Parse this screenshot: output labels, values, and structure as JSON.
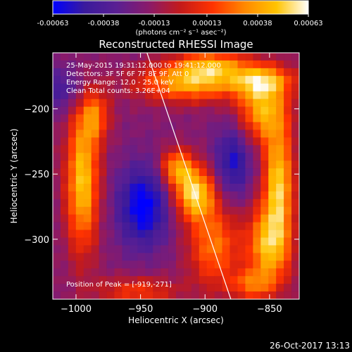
{
  "colorbar": {
    "tick_labels": [
      "-0.00063",
      "-0.00038",
      "-0.00013",
      "0.00013",
      "0.00038",
      "0.00063"
    ],
    "tick_values": [
      -0.00063,
      -0.00038,
      -0.00013,
      0.00013,
      0.00038,
      0.00063
    ],
    "range": [
      -0.00063,
      0.00063
    ],
    "unit_label": "(photons cm⁻² s⁻¹ asec⁻²)",
    "colors": [
      "#0000ff",
      "#3a1a9c",
      "#5a1f93",
      "#8a1a6a",
      "#c41a1a",
      "#ff3300",
      "#ff8800",
      "#ffc400",
      "#ffffff"
    ]
  },
  "chart_data": {
    "type": "heatmap",
    "title": "Reconstructed RHESSI Image",
    "xlabel": "Heliocentric X (arcsec)",
    "ylabel": "Heliocentric Y (arcsec)",
    "xlim": [
      -1018,
      -827
    ],
    "ylim": [
      -346,
      -157
    ],
    "xticks": [
      -1000,
      -950,
      -900,
      -850
    ],
    "xtick_labels": [
      "−1000",
      "−950",
      "−900",
      "−850"
    ],
    "yticks": [
      -200,
      -250,
      -300
    ],
    "ytick_labels": [
      "−200",
      "−250",
      "−300"
    ],
    "info_lines": [
      "25-May-2015 19:31:12.000 to 19:41:12.000",
      "Detectors: 3F 5F 6F 7F 8F 9F, Att 0",
      "Energy Range: 12.0 - 25.0 keV",
      "Clean     Total counts: 3.26E+04"
    ],
    "peak_label": "Position of Peak = [-919,-271]",
    "peak_position": [
      -919,
      -271
    ],
    "limb_line": [
      [
        -945,
        -157
      ],
      [
        -880,
        -346
      ]
    ],
    "nx": 32,
    "ny": 32,
    "blobs": [
      {
        "x": -995,
        "y": -255,
        "sx": 9,
        "sy": 38,
        "a": 0.95
      },
      {
        "x": -985,
        "y": -205,
        "sx": 8,
        "sy": 14,
        "a": 0.55
      },
      {
        "x": -908,
        "y": -265,
        "sx": 11,
        "sy": 14,
        "a": 1.0
      },
      {
        "x": -922,
        "y": -245,
        "sx": 9,
        "sy": 10,
        "a": 0.75
      },
      {
        "x": -893,
        "y": -305,
        "sx": 14,
        "sy": 22,
        "a": 0.65
      },
      {
        "x": -912,
        "y": -180,
        "sx": 28,
        "sy": 10,
        "a": 0.85
      },
      {
        "x": -895,
        "y": -166,
        "sx": 20,
        "sy": 8,
        "a": 0.65
      },
      {
        "x": -855,
        "y": -200,
        "sx": 14,
        "sy": 18,
        "a": 0.85
      },
      {
        "x": -843,
        "y": -255,
        "sx": 8,
        "sy": 28,
        "a": 0.95
      },
      {
        "x": -850,
        "y": -305,
        "sx": 12,
        "sy": 22,
        "a": 0.9
      },
      {
        "x": -855,
        "y": -178,
        "sx": 18,
        "sy": 8,
        "a": 0.6
      },
      {
        "x": -952,
        "y": -340,
        "sx": 22,
        "sy": 8,
        "a": 0.45
      },
      {
        "x": -865,
        "y": -335,
        "sx": 12,
        "sy": 8,
        "a": 0.5
      },
      {
        "x": -948,
        "y": -275,
        "sx": 14,
        "sy": 22,
        "a": -0.7
      },
      {
        "x": -878,
        "y": -240,
        "sx": 10,
        "sy": 20,
        "a": -0.55
      },
      {
        "x": -1010,
        "y": -185,
        "sx": 12,
        "sy": 12,
        "a": -0.35
      }
    ],
    "grid": false
  },
  "footer": {
    "date": "26-Oct-2017 13:13"
  }
}
